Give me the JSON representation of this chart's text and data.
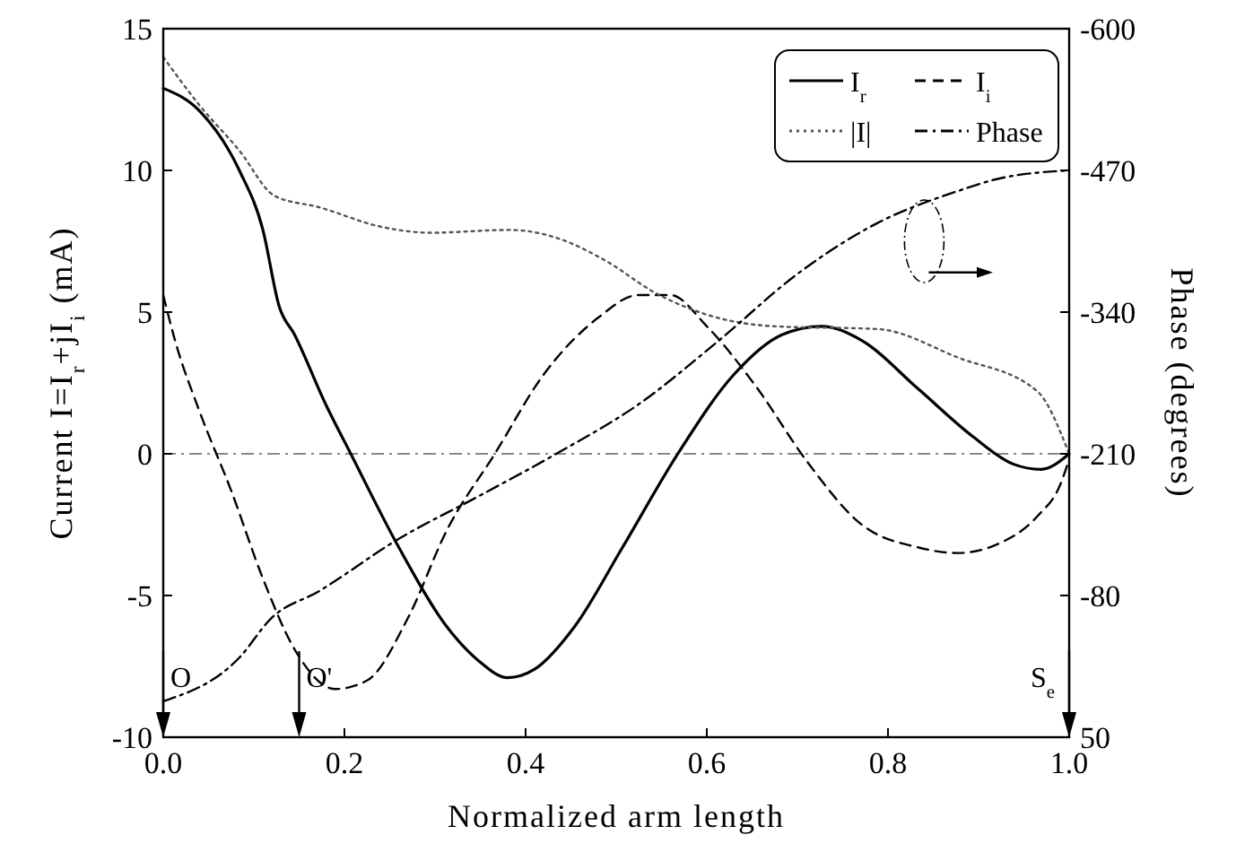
{
  "chart_data": {
    "type": "line",
    "xlabel": "Normalized arm length",
    "ylabel": "Current I=I$_{r}$+jI$_{i}$ (mA)",
    "y2label": "Phase (degrees)",
    "xlim": [
      0,
      1
    ],
    "xticks": [
      {
        "value": 0,
        "label": "0.0"
      },
      {
        "value": 0.2,
        "label": "0.2"
      },
      {
        "value": 0.4,
        "label": "0.4"
      },
      {
        "value": 0.6,
        "label": "0.6"
      },
      {
        "value": 0.8,
        "label": "0.8"
      },
      {
        "value": 1,
        "label": "1.0"
      }
    ],
    "ylim": [
      -10,
      15
    ],
    "yticks": [
      -10,
      -5,
      0,
      5,
      10,
      15
    ],
    "y2lim": [
      50,
      -600
    ],
    "y2ticks": [
      50,
      -80,
      -210,
      -340,
      -470,
      -600
    ],
    "grid": false,
    "legend": "top right",
    "marker": "none",
    "series": [
      {
        "name": "I$_{r}$",
        "color": "#000000",
        "line_style": "solid",
        "x": [
          0,
          0.04,
          0.084,
          0.11,
          0.128,
          0.145,
          0.18,
          0.207,
          0.26,
          0.313,
          0.348,
          0.38,
          0.41,
          0.454,
          0.507,
          0.568,
          0.63,
          0.683,
          0.727,
          0.771,
          0.833,
          0.894,
          0.938,
          0.969,
          1.0
        ],
        "values": [
          12.9,
          12.1,
          10,
          7.9,
          5.2,
          4.2,
          1.7,
          0,
          -3.3,
          -6.1,
          -7.3,
          -7.9,
          -7.6,
          -6.1,
          -3.3,
          0,
          2.8,
          4.2,
          4.5,
          4.0,
          2.3,
          0.6,
          -0.36,
          -0.55,
          0
        ]
      },
      {
        "name": "I$_{i}$",
        "color": "#000000",
        "line_style": "dashed",
        "x": [
          0,
          0.013,
          0.04,
          0.075,
          0.11,
          0.145,
          0.19,
          0.225,
          0.27,
          0.313,
          0.366,
          0.42,
          0.48,
          0.524,
          0.56,
          0.6,
          0.656,
          0.709,
          0.771,
          0.833,
          0.877,
          0.92,
          0.965,
          0.99,
          1.0
        ],
        "values": [
          5.6,
          4.0,
          1.5,
          -1.3,
          -4.4,
          -6.9,
          -8.3,
          -8.0,
          -5.8,
          -2.7,
          0,
          2.8,
          4.8,
          5.6,
          5.6,
          4.5,
          2.3,
          -0.2,
          -2.5,
          -3.3,
          -3.5,
          -3.2,
          -2.2,
          -1.1,
          -0.2
        ]
      },
      {
        "name": "|I|",
        "color": "#555555",
        "line_style": "dotted",
        "x": [
          0,
          0.04,
          0.084,
          0.123,
          0.172,
          0.242,
          0.295,
          0.383,
          0.436,
          0.489,
          0.542,
          0.612,
          0.674,
          0.789,
          0.877,
          0.965,
          1.0
        ],
        "values": [
          14.0,
          12.3,
          10.7,
          9.1,
          8.7,
          8.0,
          7.8,
          7.9,
          7.6,
          6.8,
          5.7,
          4.8,
          4.5,
          4.4,
          3.4,
          2.2,
          0
        ]
      },
      {
        "name": "Phase",
        "color": "#000000",
        "line_style": "dashdot",
        "axis": "y2",
        "x": [
          0,
          0.084,
          0.119,
          0.172,
          0.26,
          0.348,
          0.436,
          0.524,
          0.612,
          0.7,
          0.789,
          0.877,
          0.92,
          1.0
        ],
        "values": [
          17,
          -23,
          -59,
          -84,
          -132,
          -171,
          -211,
          -255,
          -313,
          -375,
          -422,
          -451,
          -462,
          -470
        ]
      }
    ],
    "ref_lines": [
      {
        "axis": "y",
        "value": 0,
        "color": "#888888",
        "line_style": "dashdot"
      }
    ],
    "annotations": [
      "O",
      "O'",
      "S$_{e}$"
    ]
  }
}
